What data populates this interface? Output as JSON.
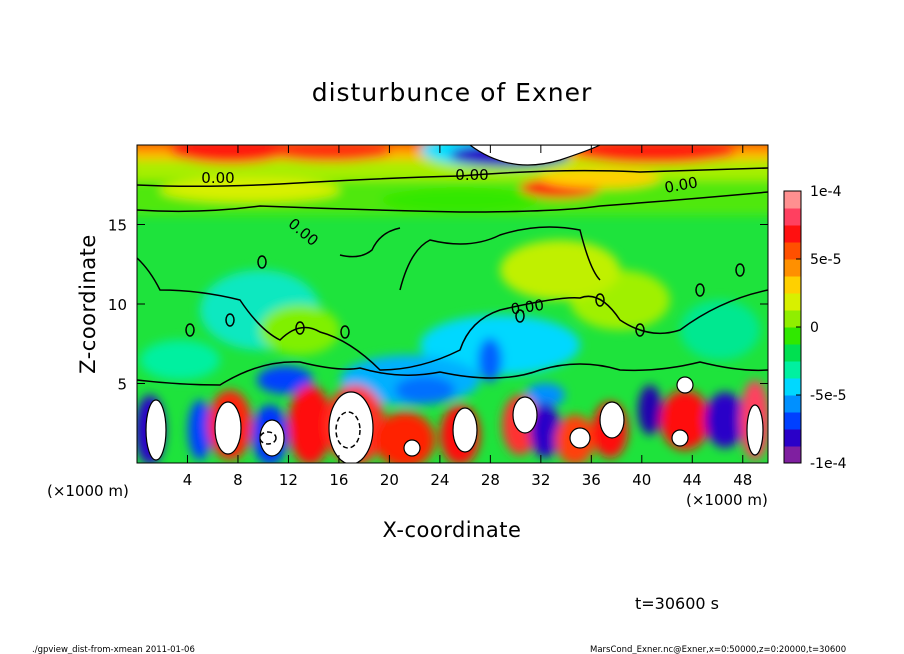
{
  "chart_data": {
    "type": "heatmap",
    "title": "disturbunce of Exner",
    "xlabel": "X-coordinate",
    "ylabel": "Z-coordinate",
    "x_unit": "(×1000 m)",
    "y_unit": "(×1000 m)",
    "xlim": [
      0,
      50
    ],
    "ylim": [
      0,
      20
    ],
    "x_ticks": [
      4,
      8,
      12,
      16,
      20,
      24,
      28,
      32,
      36,
      40,
      44,
      48
    ],
    "y_ticks": [
      5,
      10,
      15
    ],
    "colorbar": {
      "range": [
        -0.0001,
        0.0001
      ],
      "ticks": [
        {
          "value": 0.0001,
          "label": "1e-4"
        },
        {
          "value": 5e-05,
          "label": "5e-5"
        },
        {
          "value": 0,
          "label": "0"
        },
        {
          "value": -5e-05,
          "label": "-5e-5"
        },
        {
          "value": -0.0001,
          "label": "-1e-4"
        }
      ],
      "colors": [
        "#7f1fa0",
        "#2a00c8",
        "#0040ff",
        "#0090ff",
        "#00d8ff",
        "#00f0a0",
        "#00e050",
        "#30e800",
        "#90ee00",
        "#d8f000",
        "#ffd000",
        "#ff9000",
        "#ff5000",
        "#ff1010",
        "#ff4060",
        "#ff9090"
      ]
    },
    "contour_labels": [
      "0.00",
      "0.00",
      "0.00",
      "0.00",
      "0.00"
    ],
    "time_label": "t=30600 s"
  },
  "footer": {
    "left": "./gpview_dist-from-xmean  2011-01-06",
    "right": "MarsCond_Exner.nc@Exner,x=0:50000,z=0:20000,t=30600"
  }
}
